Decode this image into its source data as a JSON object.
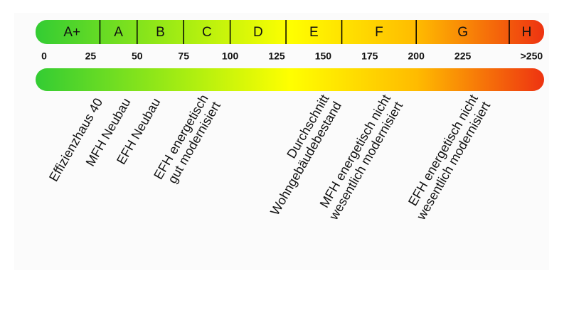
{
  "scale": {
    "classes": [
      {
        "label": "A+",
        "from": 0,
        "to": 30
      },
      {
        "label": "A",
        "from": 30,
        "to": 50
      },
      {
        "label": "B",
        "from": 50,
        "to": 75
      },
      {
        "label": "C",
        "from": 75,
        "to": 100
      },
      {
        "label": "D",
        "from": 100,
        "to": 130
      },
      {
        "label": "E",
        "from": 130,
        "to": 160
      },
      {
        "label": "F",
        "from": 160,
        "to": 200
      },
      {
        "label": "G",
        "from": 200,
        "to": 250
      },
      {
        "label": "H",
        "from": 250,
        "to": 270
      }
    ],
    "ticks": [
      0,
      25,
      50,
      75,
      100,
      125,
      150,
      175,
      200,
      225,
      {
        "value": 262,
        "label": ">250"
      }
    ],
    "buildings": [
      {
        "lines": [
          "Effizienzhaus 40"
        ],
        "value": 30
      },
      {
        "lines": [
          "MFH Neubau"
        ],
        "value": 45
      },
      {
        "lines": [
          "EFH Neubau"
        ],
        "value": 61
      },
      {
        "lines": [
          "EFH energetisch",
          "gut modernisiert"
        ],
        "value": 90
      },
      {
        "lines": [
          "Durchschnitt",
          "Wohngebäudebestand"
        ],
        "value": 155
      },
      {
        "lines": [
          "MFH energetisch nicht",
          "wesentlich modernisiert"
        ],
        "value": 188
      },
      {
        "lines": [
          "EFH energetisch nicht",
          "wesentlich modernisiert"
        ],
        "value": 235
      }
    ]
  }
}
